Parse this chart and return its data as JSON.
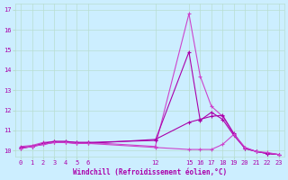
{
  "xlabel": "Windchill (Refroidissement éolien,°C)",
  "bg_color": "#cceeff",
  "line_color": "#aa00aa",
  "line_color2": "#cc44cc",
  "xlim": [
    -0.5,
    23.5
  ],
  "ylim": [
    9.7,
    17.3
  ],
  "xticks": [
    0,
    1,
    2,
    3,
    4,
    5,
    6,
    12,
    15,
    16,
    17,
    18,
    19,
    20,
    21,
    22,
    23
  ],
  "yticks": [
    10,
    11,
    12,
    13,
    14,
    15,
    16,
    17
  ],
  "curve1_x": [
    0,
    1,
    2,
    3,
    4,
    5,
    6,
    12,
    15,
    16,
    17,
    18,
    19,
    20,
    21,
    22,
    23
  ],
  "curve1_y": [
    10.2,
    10.25,
    10.4,
    10.45,
    10.45,
    10.4,
    10.4,
    10.2,
    16.8,
    13.7,
    12.2,
    11.7,
    10.8,
    10.15,
    9.95,
    9.85,
    9.8
  ],
  "curve2_x": [
    0,
    1,
    2,
    3,
    4,
    5,
    6,
    12,
    15,
    16,
    17,
    18,
    19,
    20,
    21,
    22,
    23
  ],
  "curve2_y": [
    10.15,
    10.2,
    10.35,
    10.45,
    10.45,
    10.4,
    10.4,
    10.5,
    14.9,
    11.5,
    11.9,
    11.55,
    10.75,
    10.1,
    9.95,
    9.85,
    9.8
  ],
  "curve3_x": [
    0,
    1,
    2,
    3,
    4,
    5,
    6,
    12,
    15,
    16,
    17,
    18,
    19,
    20,
    21,
    22,
    23
  ],
  "curve3_y": [
    10.1,
    10.2,
    10.3,
    10.4,
    10.4,
    10.35,
    10.35,
    10.55,
    11.4,
    11.55,
    11.7,
    11.75,
    10.85,
    10.1,
    9.95,
    9.85,
    9.8
  ],
  "curve4_x": [
    0,
    1,
    2,
    3,
    4,
    5,
    6,
    12,
    15,
    16,
    17,
    18,
    19,
    20,
    21,
    22,
    23
  ],
  "curve4_y": [
    10.1,
    10.2,
    10.3,
    10.4,
    10.4,
    10.35,
    10.35,
    10.15,
    10.05,
    10.05,
    10.05,
    10.3,
    10.8,
    10.15,
    9.95,
    9.9,
    9.8
  ]
}
